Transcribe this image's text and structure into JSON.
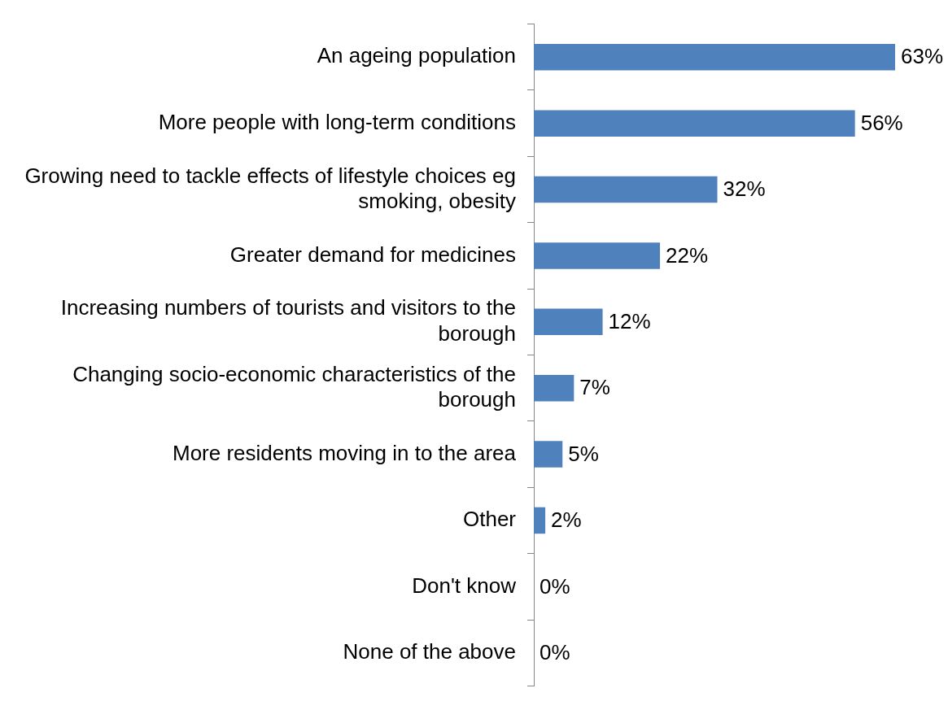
{
  "chart_data": {
    "type": "bar",
    "orientation": "horizontal",
    "categories": [
      "An ageing population",
      "More people with long-term conditions",
      "Growing need to tackle effects of lifestyle choices eg smoking, obesity",
      "Greater demand for medicines",
      "Increasing numbers of tourists and visitors to the borough",
      "Changing socio-economic characteristics of the borough",
      "More residents moving in to the area",
      "Other",
      "Don't know",
      "None of the above"
    ],
    "values": [
      63,
      56,
      32,
      22,
      12,
      7,
      5,
      2,
      0,
      0
    ],
    "value_labels": [
      "63%",
      "56%",
      "32%",
      "22%",
      "12%",
      "7%",
      "5%",
      "2%",
      "0%",
      "0%"
    ],
    "color": "#4f81bd",
    "tick_labels": "y"
  }
}
